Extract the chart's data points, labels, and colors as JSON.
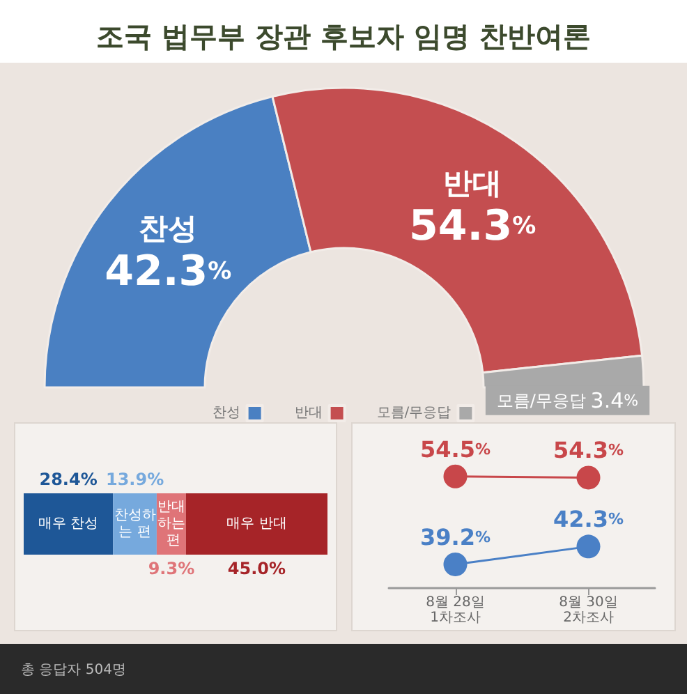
{
  "chart_data": [
    {
      "type": "donut",
      "title": "조국 법무부 장관 후보자 임명 찬반여론",
      "categories": [
        "찬성",
        "반대",
        "모름/무응답"
      ],
      "values": [
        42.3,
        54.3,
        3.4
      ],
      "colors": [
        "#4a80c2",
        "#c44e50",
        "#a9a9a9"
      ],
      "value_labels": [
        "42.3%",
        "54.3%",
        "3.4%"
      ],
      "legend": "bottom",
      "annotations": [
        "총 응답자 504명"
      ]
    },
    {
      "type": "bar",
      "orientation": "horizontal",
      "stacked": true,
      "categories": [
        null
      ],
      "series": [
        {
          "name": "매우 찬성",
          "color": "#1e5797",
          "values": [
            28.4
          ],
          "value_labels": [
            "28.4%"
          ]
        },
        {
          "name": "찬성하는 편",
          "color": "#76a9dd",
          "values": [
            13.9
          ],
          "value_labels": [
            "13.9%"
          ]
        },
        {
          "name": "반대하는 편",
          "color": "#df7478",
          "values": [
            9.3
          ],
          "value_labels": [
            "9.3%"
          ]
        },
        {
          "name": "매우 반대",
          "color": "#a62428",
          "values": [
            45.0
          ],
          "value_labels": [
            "45.0%"
          ]
        }
      ],
      "tick_labels": false
    },
    {
      "type": "line",
      "categories": [
        "8월 28일\n1차조사",
        "8월 30일\n2차조사"
      ],
      "series": [
        {
          "color": "#c8474a",
          "values": [
            54.5,
            54.3
          ],
          "value_labels": [
            "54.5%",
            "54.3%"
          ]
        },
        {
          "color": "#4a80c6",
          "values": [
            39.2,
            42.3
          ],
          "value_labels": [
            "39.2%",
            "42.3%"
          ]
        }
      ],
      "marker": "circle",
      "tick_labels": "x"
    }
  ]
}
